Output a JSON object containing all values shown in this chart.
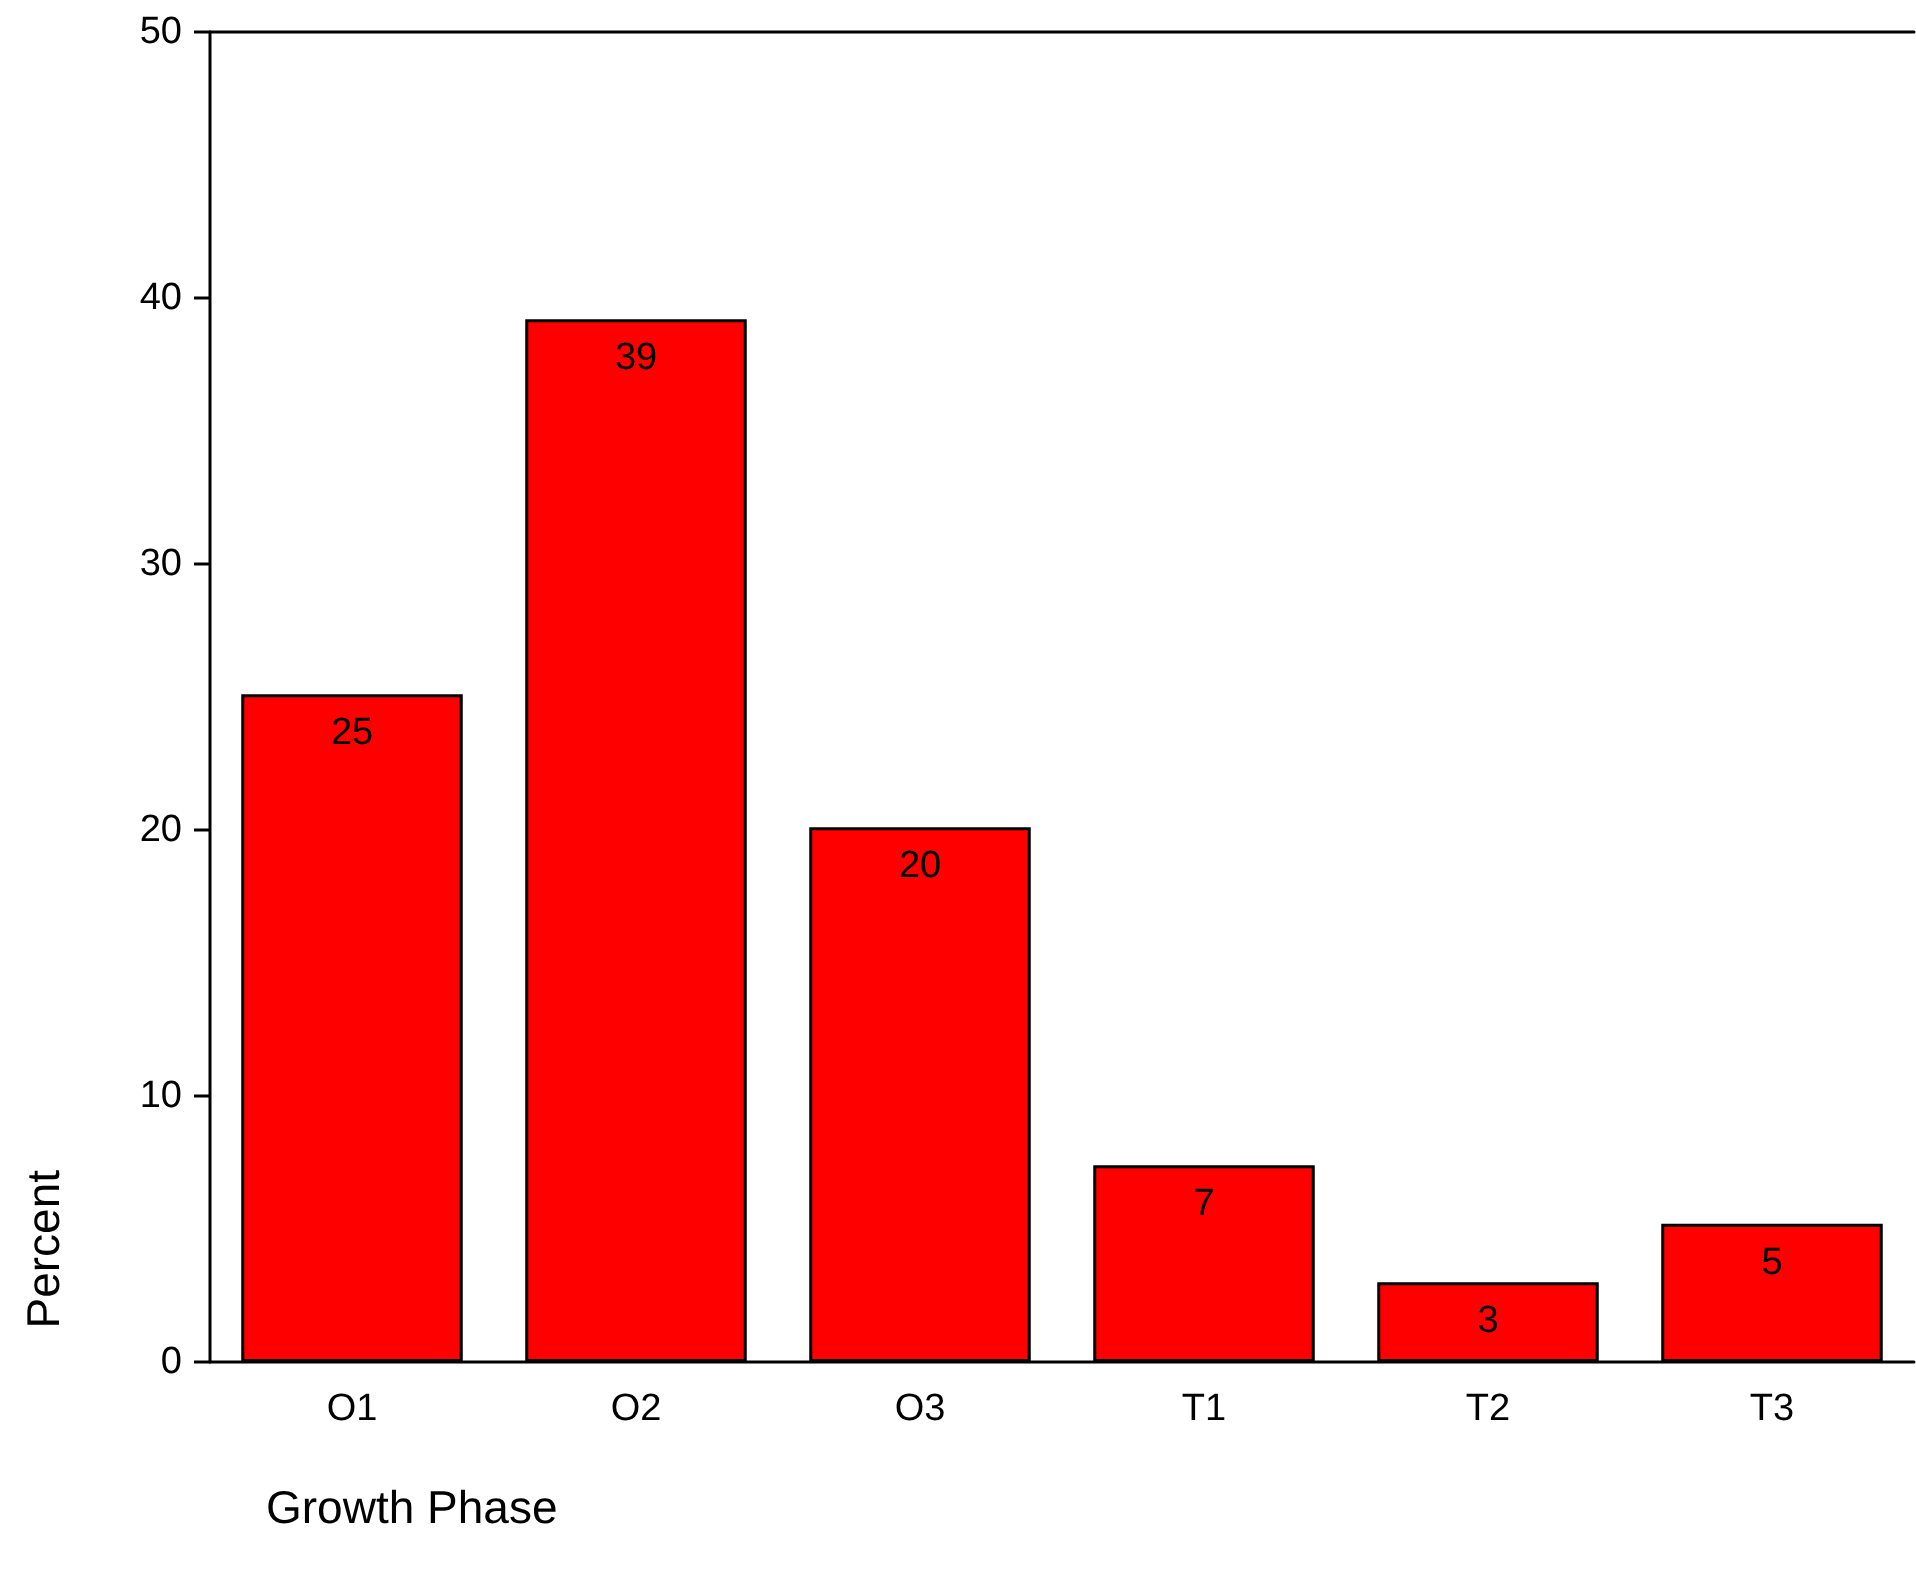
{
  "chart_data": {
    "type": "bar",
    "xlabel": "Growth Phase",
    "ylabel": "Percent",
    "categories": [
      "O1",
      "O2",
      "O3",
      "T1",
      "T2",
      "T3"
    ],
    "values": [
      25.1,
      39.2,
      20.1,
      7.4,
      3.0,
      5.2
    ],
    "value_labels": [
      "25",
      "39",
      "20",
      "7",
      "3",
      "5"
    ],
    "color": "#ff0000",
    "ylim": [
      0,
      50
    ],
    "yticks": [
      0,
      10,
      20,
      30,
      40,
      50
    ],
    "grid": false
  }
}
